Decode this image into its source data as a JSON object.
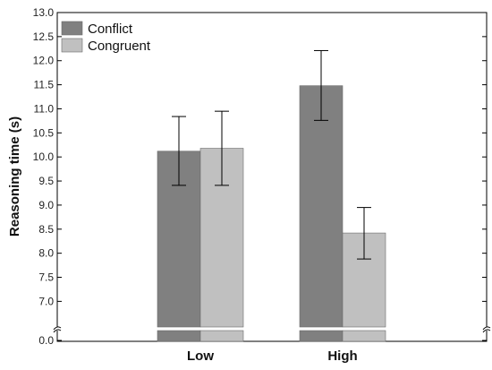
{
  "chart_data": {
    "type": "bar",
    "title": "",
    "xlabel": "",
    "ylabel": "Reasoning time (s)",
    "categories": [
      "Low",
      "High"
    ],
    "series": [
      {
        "name": "Conflict",
        "color": "#808080",
        "values": [
          10.12,
          11.48
        ],
        "error_low": [
          9.41,
          10.76
        ],
        "error_high": [
          10.84,
          12.21
        ]
      },
      {
        "name": "Congruent",
        "color": "#c0c0c0",
        "values": [
          10.18,
          8.42
        ],
        "error_low": [
          9.41,
          7.88
        ],
        "error_high": [
          10.95,
          8.95
        ]
      }
    ],
    "yticks": [
      "13.0",
      "12.5",
      "12.0",
      "11.5",
      "11.0",
      "10.5",
      "10.0",
      "9.5",
      "9.0",
      "8.5",
      "8.0",
      "7.5",
      "7.0",
      "0.0"
    ],
    "ylim": [
      6.7,
      13.0
    ],
    "axis_break": true,
    "break_baseline": "0.0",
    "legend_position": "top-left",
    "grid": false
  }
}
